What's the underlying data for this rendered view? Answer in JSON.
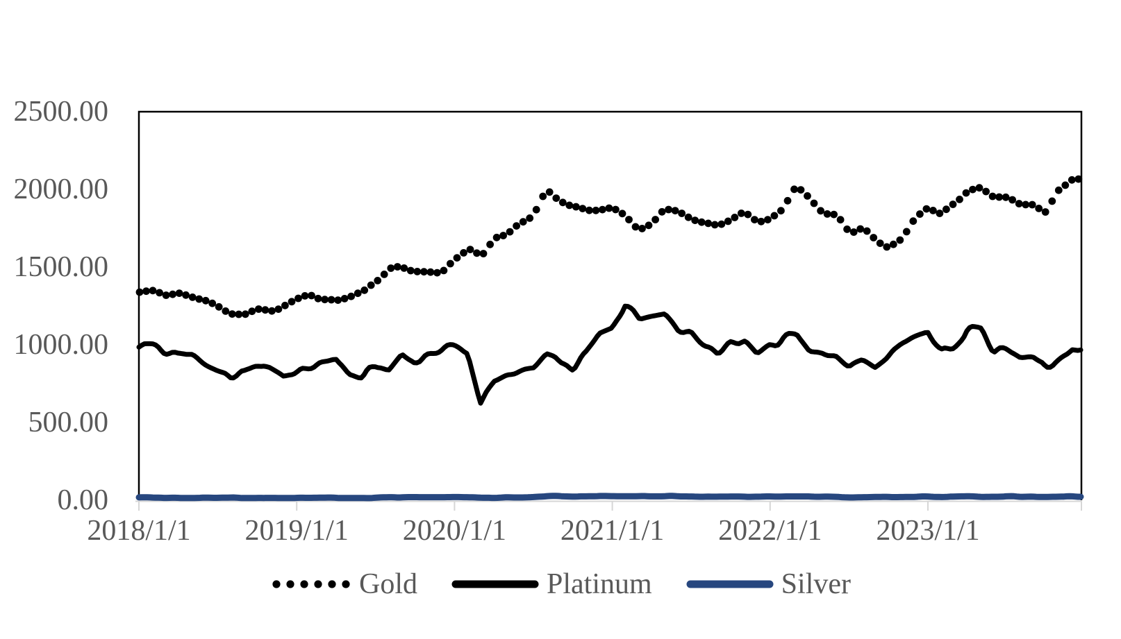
{
  "chart_data": {
    "type": "line",
    "title": "",
    "xlabel": "",
    "ylabel": "",
    "ylim": [
      0,
      2500
    ],
    "y_tick_step": 500,
    "grid": false,
    "y_tick_labels": [
      "2500.00",
      "2000.00",
      "1500.00",
      "1000.00",
      "500.00",
      "0.00"
    ],
    "x_tick_labels": [
      "2018/1/1",
      "2019/1/1",
      "2020/1/1",
      "2021/1/1",
      "2022/1/1",
      "2023/1/1"
    ],
    "x_range": [
      "2018/1/1",
      "2023/12/31"
    ],
    "legend_position": "bottom-center",
    "categories": [
      "2018-01",
      "2018-02",
      "2018-03",
      "2018-04",
      "2018-05",
      "2018-06",
      "2018-07",
      "2018-08",
      "2018-09",
      "2018-10",
      "2018-11",
      "2018-12",
      "2019-01",
      "2019-02",
      "2019-03",
      "2019-04",
      "2019-05",
      "2019-06",
      "2019-07",
      "2019-08",
      "2019-09",
      "2019-10",
      "2019-11",
      "2019-12",
      "2020-01",
      "2020-02",
      "2020-03",
      "2020-04",
      "2020-05",
      "2020-06",
      "2020-07",
      "2020-08",
      "2020-09",
      "2020-10",
      "2020-11",
      "2020-12",
      "2021-01",
      "2021-02",
      "2021-03",
      "2021-04",
      "2021-05",
      "2021-06",
      "2021-07",
      "2021-08",
      "2021-09",
      "2021-10",
      "2021-11",
      "2021-12",
      "2022-01",
      "2022-02",
      "2022-03",
      "2022-04",
      "2022-05",
      "2022-06",
      "2022-07",
      "2022-08",
      "2022-09",
      "2022-10",
      "2022-11",
      "2022-12",
      "2023-01",
      "2023-02",
      "2023-03",
      "2023-04",
      "2023-05",
      "2023-06",
      "2023-07",
      "2023-08",
      "2023-09",
      "2023-10",
      "2023-11",
      "2023-12"
    ],
    "series": [
      {
        "name": "Gold",
        "style": "dotted",
        "color": "#000000",
        "values": [
          1325,
          1330,
          1325,
          1335,
          1305,
          1280,
          1240,
          1200,
          1195,
          1220,
          1222,
          1250,
          1290,
          1315,
          1300,
          1285,
          1285,
          1340,
          1415,
          1500,
          1505,
          1490,
          1465,
          1480,
          1560,
          1610,
          1560,
          1690,
          1715,
          1760,
          1850,
          2030,
          1945,
          1900,
          1870,
          1870,
          1890,
          1805,
          1720,
          1770,
          1880,
          1865,
          1805,
          1790,
          1760,
          1790,
          1850,
          1795,
          1820,
          1880,
          2010,
          1950,
          1850,
          1840,
          1740,
          1770,
          1680,
          1645,
          1690,
          1800,
          1880,
          1845,
          1920,
          2000,
          2010,
          1945,
          1955,
          1915,
          1905,
          1845,
          1985,
          2055
        ]
      },
      {
        "name": "Platinum",
        "style": "solid",
        "color": "#000000",
        "values": [
          1005,
          990,
          950,
          920,
          905,
          870,
          830,
          792,
          800,
          835,
          848,
          795,
          815,
          855,
          865,
          890,
          815,
          800,
          845,
          855,
          955,
          890,
          900,
          935,
          985,
          950,
          610,
          745,
          780,
          815,
          845,
          935,
          885,
          865,
          950,
          1060,
          1090,
          1260,
          1195,
          1215,
          1230,
          1130,
          1085,
          1005,
          975,
          1030,
          1045,
          945,
          1000,
          1060,
          1090,
          965,
          950,
          920,
          868,
          905,
          858,
          925,
          990,
          1030,
          1065,
          950,
          985,
          1085,
          1075,
          950,
          945,
          905,
          915,
          880,
          905,
          985
        ]
      },
      {
        "name": "Silver",
        "style": "solid",
        "color": "#27477F",
        "values": [
          17.1,
          16.5,
          16.4,
          16.6,
          16.4,
          16.1,
          15.5,
          14.7,
          14.3,
          14.6,
          14.3,
          14.8,
          15.6,
          15.8,
          15.3,
          15.0,
          14.6,
          15.1,
          16.2,
          17.2,
          18.0,
          17.6,
          17.0,
          17.2,
          17.9,
          17.7,
          14.7,
          15.2,
          16.6,
          17.8,
          19.3,
          27.0,
          26.8,
          24.2,
          23.7,
          25.5,
          25.9,
          26.7,
          25.6,
          25.9,
          27.5,
          27.7,
          25.5,
          23.9,
          22.6,
          23.9,
          23.3,
          22.5,
          22.9,
          23.9,
          24.9,
          23.4,
          21.8,
          21.3,
          19.1,
          20.0,
          18.8,
          19.5,
          21.3,
          23.0,
          23.6,
          21.7,
          22.4,
          25.0,
          23.6,
          22.7,
          24.4,
          23.5,
          22.4,
          22.3,
          24.3,
          24.2
        ]
      }
    ],
    "colors": {
      "axis_text": "#595959",
      "plot_border": "#000000",
      "bottom_axis": "#D6D6D6",
      "silver_line": "#27477F"
    }
  }
}
